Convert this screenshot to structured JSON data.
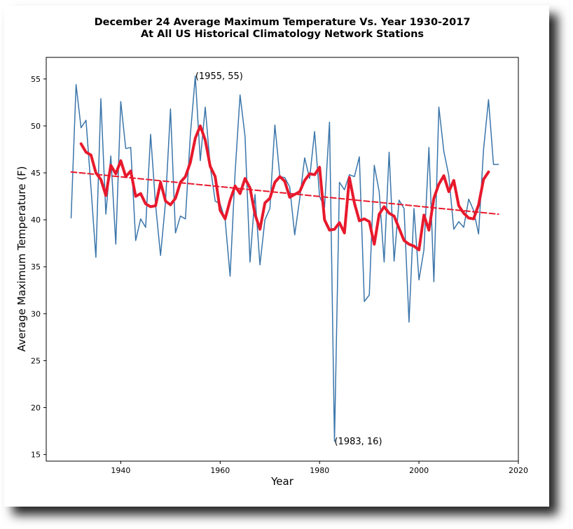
{
  "chart_data": {
    "type": "line",
    "title": "December 24 Average Maximum Temperature Vs. Year 1930-2017",
    "subtitle": "At All US Historical Climatology Network Stations",
    "xlabel": "Year",
    "ylabel": "Average Maximum Temperature (F)",
    "xlim": [
      1925,
      2020
    ],
    "ylim": [
      14.3,
      57.3
    ],
    "xticks": [
      1940,
      1960,
      1980,
      2000,
      2020
    ],
    "yticks": [
      15,
      20,
      25,
      30,
      35,
      40,
      45,
      50,
      55
    ],
    "grid": false,
    "series": [
      {
        "color": "#3a75aa",
        "style": "line",
        "x": [
          1930,
          1931,
          1932,
          1933,
          1934,
          1935,
          1936,
          1937,
          1938,
          1939,
          1940,
          1941,
          1942,
          1943,
          1944,
          1945,
          1946,
          1947,
          1948,
          1949,
          1950,
          1951,
          1952,
          1953,
          1954,
          1955,
          1956,
          1957,
          1958,
          1959,
          1960,
          1961,
          1962,
          1963,
          1964,
          1965,
          1966,
          1967,
          1968,
          1969,
          1970,
          1971,
          1972,
          1973,
          1974,
          1975,
          1976,
          1977,
          1978,
          1979,
          1980,
          1981,
          1982,
          1983,
          1984,
          1985,
          1986,
          1987,
          1988,
          1989,
          1990,
          1991,
          1992,
          1993,
          1994,
          1995,
          1996,
          1997,
          1998,
          1999,
          2000,
          2001,
          2002,
          2003,
          2004,
          2005,
          2006,
          2007,
          2008,
          2009,
          2010,
          2011,
          2012,
          2013,
          2014,
          2015,
          2016
        ],
        "values": [
          40.2,
          54.4,
          49.8,
          50.6,
          43.4,
          36.0,
          52.9,
          40.6,
          46.8,
          37.4,
          52.6,
          47.6,
          47.7,
          37.8,
          40.1,
          39.2,
          49.1,
          41.6,
          36.2,
          41.9,
          51.8,
          38.6,
          40.4,
          40.1,
          49.0,
          55.3,
          46.3,
          52.0,
          45.7,
          42.0,
          41.7,
          40.0,
          34.0,
          45.0,
          53.3,
          48.9,
          35.5,
          42.7,
          35.2,
          40.0,
          41.2,
          50.1,
          44.6,
          44.5,
          43.5,
          38.4,
          42.2,
          46.6,
          44.4,
          49.4,
          42.5,
          41.3,
          50.4,
          16.4,
          44.0,
          43.2,
          44.8,
          44.6,
          46.7,
          31.3,
          32.0,
          45.8,
          43.0,
          35.5,
          47.2,
          35.6,
          42.1,
          41.2,
          29.1,
          41.2,
          33.6,
          36.8,
          47.7,
          33.4,
          52.0,
          47.3,
          44.7,
          39.0,
          39.8,
          39.2,
          42.2,
          41.0,
          38.5,
          47.5,
          52.8,
          45.9,
          45.9
        ]
      },
      {
        "color": "#e8192c",
        "style": "line",
        "x": [
          1932,
          1933,
          1934,
          1935,
          1936,
          1937,
          1938,
          1939,
          1940,
          1941,
          1942,
          1943,
          1944,
          1945,
          1946,
          1947,
          1948,
          1949,
          1950,
          1951,
          1952,
          1953,
          1954,
          1955,
          1956,
          1957,
          1958,
          1959,
          1960,
          1961,
          1962,
          1963,
          1964,
          1965,
          1966,
          1967,
          1968,
          1969,
          1970,
          1971,
          1972,
          1973,
          1974,
          1975,
          1976,
          1977,
          1978,
          1979,
          1980,
          1981,
          1982,
          1983,
          1984,
          1985,
          1986,
          1987,
          1988,
          1989,
          1990,
          1991,
          1992,
          1993,
          1994,
          1995,
          1996,
          1997,
          1998,
          1999,
          2000,
          2001,
          2002,
          2003,
          2004,
          2005,
          2006,
          2007,
          2008,
          2009,
          2010,
          2011,
          2012,
          2013,
          2014
        ],
        "values": [
          48.1,
          47.2,
          46.9,
          45.0,
          44.3,
          42.6,
          45.8,
          44.9,
          46.3,
          44.6,
          45.2,
          42.5,
          42.8,
          41.7,
          41.4,
          41.5,
          44.0,
          42.0,
          41.6,
          42.3,
          44.0,
          44.6,
          46.1,
          48.7,
          50.0,
          48.5,
          45.7,
          44.6,
          41.0,
          40.1,
          42.1,
          43.6,
          42.8,
          44.4,
          43.4,
          40.6,
          39.0,
          41.8,
          42.3,
          44.0,
          44.6,
          44.1,
          42.4,
          42.7,
          43.0,
          44.2,
          44.9,
          44.8,
          45.6,
          40.0,
          38.9,
          39.0,
          39.7,
          38.6,
          44.5,
          41.8,
          39.9,
          40.1,
          39.8,
          37.4,
          40.6,
          41.4,
          40.7,
          40.4,
          39.1,
          37.8,
          37.4,
          37.2,
          36.8,
          40.5,
          38.9,
          42.3,
          43.8,
          44.7,
          43.0,
          44.2,
          41.5,
          40.7,
          40.2,
          40.1,
          41.6,
          44.3,
          45.1
        ]
      },
      {
        "color": "#e8192c",
        "style": "dashed",
        "x": [
          1930,
          2016
        ],
        "values": [
          45.1,
          40.6
        ]
      }
    ],
    "annotations": [
      {
        "text": "(1955, 55)",
        "x": 1955,
        "y": 55.3
      },
      {
        "text": "(1983, 16)",
        "x": 1983,
        "y": 16.4
      }
    ]
  }
}
